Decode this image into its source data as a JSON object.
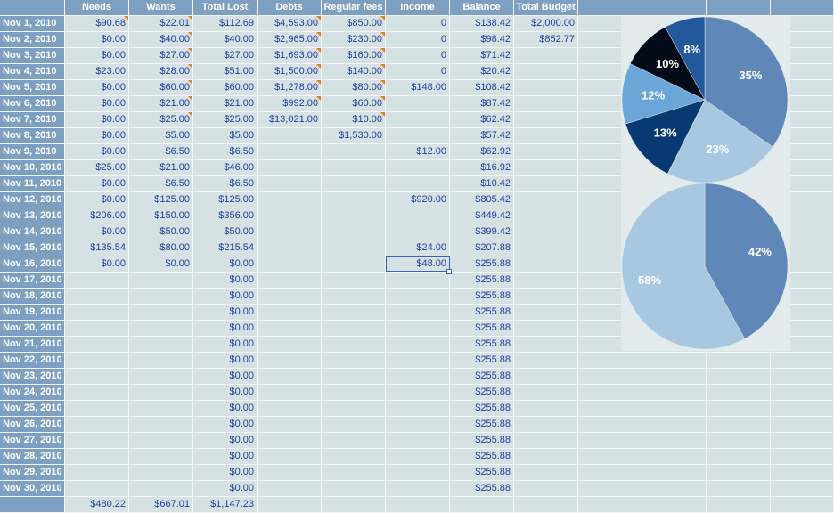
{
  "columns": [
    "",
    "Needs",
    "Wants",
    "Total Lost",
    "Debts",
    "Regular fees",
    "Income",
    "Balance",
    "Total Budget",
    "",
    "",
    "",
    ""
  ],
  "rows": [
    {
      "date": "Nov 1, 2010",
      "needs": "$90.68",
      "wants": "$22.01",
      "total": "$112.69",
      "debts": "$4,593.00",
      "fees": "$850.00",
      "income": "0",
      "balance": "$138.42",
      "budget": "$2,000.00"
    },
    {
      "date": "Nov 2, 2010",
      "needs": "$0.00",
      "wants": "$40.00",
      "total": "$40.00",
      "debts": "$2,965.00",
      "fees": "$230.00",
      "income": "0",
      "balance": "$98.42",
      "budget": "$852.77"
    },
    {
      "date": "Nov 3, 2010",
      "needs": "$0.00",
      "wants": "$27.00",
      "total": "$27.00",
      "debts": "$1,693.00",
      "fees": "$160.00",
      "income": "0",
      "balance": "$71.42",
      "budget": ""
    },
    {
      "date": "Nov 4, 2010",
      "needs": "$23.00",
      "wants": "$28.00",
      "total": "$51.00",
      "debts": "$1,500.00",
      "fees": "$140.00",
      "income": "0",
      "balance": "$20.42",
      "budget": ""
    },
    {
      "date": "Nov 5, 2010",
      "needs": "$0.00",
      "wants": "$60.00",
      "total": "$60.00",
      "debts": "$1,278.00",
      "fees": "$80.00",
      "income": "$148.00",
      "balance": "$108.42",
      "budget": ""
    },
    {
      "date": "Nov 6, 2010",
      "needs": "$0.00",
      "wants": "$21.00",
      "total": "$21.00",
      "debts": "$992.00",
      "fees": "$60.00",
      "income": "",
      "balance": "$87.42",
      "budget": ""
    },
    {
      "date": "Nov 7, 2010",
      "needs": "$0.00",
      "wants": "$25.00",
      "total": "$25.00",
      "debts": "$13,021.00",
      "fees": "$10.00",
      "income": "",
      "balance": "$62.42",
      "budget": ""
    },
    {
      "date": "Nov 8, 2010",
      "needs": "$0.00",
      "wants": "$5.00",
      "total": "$5.00",
      "debts": "",
      "fees": "$1,530.00",
      "income": "",
      "balance": "$57.42",
      "budget": ""
    },
    {
      "date": "Nov 9, 2010",
      "needs": "$0.00",
      "wants": "$6.50",
      "total": "$6.50",
      "debts": "",
      "fees": "",
      "income": "$12.00",
      "balance": "$62.92",
      "budget": ""
    },
    {
      "date": "Nov 10, 2010",
      "needs": "$25.00",
      "wants": "$21.00",
      "total": "$46.00",
      "debts": "",
      "fees": "",
      "income": "",
      "balance": "$16.92",
      "budget": ""
    },
    {
      "date": "Nov 11, 2010",
      "needs": "$0.00",
      "wants": "$6.50",
      "total": "$6.50",
      "debts": "",
      "fees": "",
      "income": "",
      "balance": "$10.42",
      "budget": ""
    },
    {
      "date": "Nov 12, 2010",
      "needs": "$0.00",
      "wants": "$125.00",
      "total": "$125.00",
      "debts": "",
      "fees": "",
      "income": "$920.00",
      "balance": "$805.42",
      "budget": ""
    },
    {
      "date": "Nov 13, 2010",
      "needs": "$206.00",
      "wants": "$150.00",
      "total": "$356.00",
      "debts": "",
      "fees": "",
      "income": "",
      "balance": "$449.42",
      "budget": ""
    },
    {
      "date": "Nov 14, 2010",
      "needs": "$0.00",
      "wants": "$50.00",
      "total": "$50.00",
      "debts": "",
      "fees": "",
      "income": "",
      "balance": "$399.42",
      "budget": ""
    },
    {
      "date": "Nov 15, 2010",
      "needs": "$135.54",
      "wants": "$80.00",
      "total": "$215.54",
      "debts": "",
      "fees": "",
      "income": "$24.00",
      "balance": "$207.88",
      "budget": ""
    },
    {
      "date": "Nov 16, 2010",
      "needs": "$0.00",
      "wants": "$0.00",
      "total": "$0.00",
      "debts": "",
      "fees": "",
      "income": "$48.00",
      "balance": "$255.88",
      "budget": ""
    },
    {
      "date": "Nov 17, 2010",
      "needs": "",
      "wants": "",
      "total": "$0.00",
      "debts": "",
      "fees": "",
      "income": "",
      "balance": "$255.88",
      "budget": ""
    },
    {
      "date": "Nov 18, 2010",
      "needs": "",
      "wants": "",
      "total": "$0.00",
      "debts": "",
      "fees": "",
      "income": "",
      "balance": "$255.88",
      "budget": ""
    },
    {
      "date": "Nov 19, 2010",
      "needs": "",
      "wants": "",
      "total": "$0.00",
      "debts": "",
      "fees": "",
      "income": "",
      "balance": "$255.88",
      "budget": ""
    },
    {
      "date": "Nov 20, 2010",
      "needs": "",
      "wants": "",
      "total": "$0.00",
      "debts": "",
      "fees": "",
      "income": "",
      "balance": "$255.88",
      "budget": ""
    },
    {
      "date": "Nov 21, 2010",
      "needs": "",
      "wants": "",
      "total": "$0.00",
      "debts": "",
      "fees": "",
      "income": "",
      "balance": "$255.88",
      "budget": ""
    },
    {
      "date": "Nov 22, 2010",
      "needs": "",
      "wants": "",
      "total": "$0.00",
      "debts": "",
      "fees": "",
      "income": "",
      "balance": "$255.88",
      "budget": ""
    },
    {
      "date": "Nov 23, 2010",
      "needs": "",
      "wants": "",
      "total": "$0.00",
      "debts": "",
      "fees": "",
      "income": "",
      "balance": "$255.88",
      "budget": ""
    },
    {
      "date": "Nov 24, 2010",
      "needs": "",
      "wants": "",
      "total": "$0.00",
      "debts": "",
      "fees": "",
      "income": "",
      "balance": "$255.88",
      "budget": ""
    },
    {
      "date": "Nov 25, 2010",
      "needs": "",
      "wants": "",
      "total": "$0.00",
      "debts": "",
      "fees": "",
      "income": "",
      "balance": "$255.88",
      "budget": ""
    },
    {
      "date": "Nov 26, 2010",
      "needs": "",
      "wants": "",
      "total": "$0.00",
      "debts": "",
      "fees": "",
      "income": "",
      "balance": "$255.88",
      "budget": ""
    },
    {
      "date": "Nov 27, 2010",
      "needs": "",
      "wants": "",
      "total": "$0.00",
      "debts": "",
      "fees": "",
      "income": "",
      "balance": "$255.88",
      "budget": ""
    },
    {
      "date": "Nov 28, 2010",
      "needs": "",
      "wants": "",
      "total": "$0.00",
      "debts": "",
      "fees": "",
      "income": "",
      "balance": "$255.88",
      "budget": ""
    },
    {
      "date": "Nov 29, 2010",
      "needs": "",
      "wants": "",
      "total": "$0.00",
      "debts": "",
      "fees": "",
      "income": "",
      "balance": "$255.88",
      "budget": ""
    },
    {
      "date": "Nov 30, 2010",
      "needs": "",
      "wants": "",
      "total": "$0.00",
      "debts": "",
      "fees": "",
      "income": "",
      "balance": "$255.88",
      "budget": ""
    }
  ],
  "footer": {
    "needs": "$480.22",
    "wants": "$667.01",
    "total": "$1,147.23"
  },
  "comment_markers": {
    "needs": [
      0
    ],
    "wants": [
      0,
      1,
      2,
      3,
      4,
      5,
      6
    ],
    "debts": [
      0,
      1,
      2,
      3,
      4,
      5
    ],
    "fees": [
      0,
      1,
      2,
      3,
      4,
      5,
      6
    ]
  },
  "selected_cell": {
    "row": 15,
    "column": "income"
  },
  "colors": {
    "header": "#7d9fc0",
    "cell_bg": "#d5e1e3",
    "cell_text": "#23409a",
    "comment_marker": "#f07c18",
    "chart_bg": "#e3eaec"
  },
  "chart_data": [
    {
      "type": "pie",
      "slices": [
        {
          "label": "35%",
          "value": 35,
          "color": "#5f87b8"
        },
        {
          "label": "23%",
          "value": 23,
          "color": "#a8c8e2"
        },
        {
          "label": "13%",
          "value": 13,
          "color": "#073a72"
        },
        {
          "label": "12%",
          "value": 12,
          "color": "#6aa6d8"
        },
        {
          "label": "10%",
          "value": 10,
          "color": "#030a18"
        },
        {
          "label": "8%",
          "value": 8,
          "color": "#21599b"
        }
      ]
    },
    {
      "type": "pie",
      "slices": [
        {
          "label": "42%",
          "value": 42,
          "color": "#5f87b8"
        },
        {
          "label": "58%",
          "value": 58,
          "color": "#a8c8e2"
        }
      ]
    }
  ]
}
